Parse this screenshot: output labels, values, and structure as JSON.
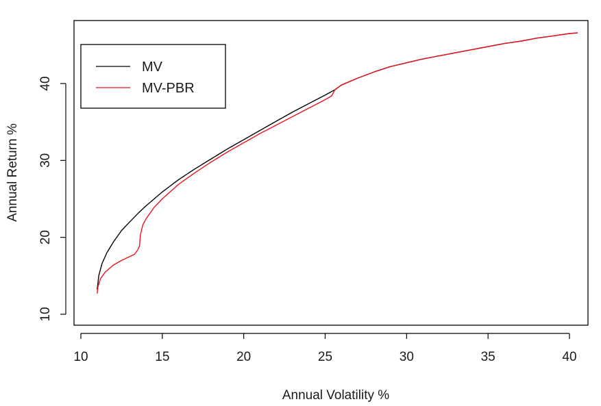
{
  "chart_data": {
    "type": "line",
    "title": "",
    "xlabel": "Annual Volatility %",
    "ylabel": "Annual Return %",
    "xlim": [
      10,
      40.5
    ],
    "ylim": [
      9,
      47
    ],
    "x_ticks": [
      10,
      15,
      20,
      25,
      30,
      35,
      40
    ],
    "y_ticks": [
      10,
      20,
      30,
      40
    ],
    "legend_position": "top-left",
    "grid": false,
    "series": [
      {
        "name": "MV",
        "color": "#000000",
        "points": [
          [
            11.0,
            13.2
          ],
          [
            11.1,
            15.0
          ],
          [
            11.3,
            16.6
          ],
          [
            11.6,
            18.0
          ],
          [
            12.0,
            19.4
          ],
          [
            12.5,
            20.9
          ],
          [
            13.0,
            22.0
          ],
          [
            13.5,
            23.1
          ],
          [
            14.0,
            24.1
          ],
          [
            15.0,
            25.9
          ],
          [
            16.0,
            27.5
          ],
          [
            17.0,
            28.9
          ],
          [
            18.0,
            30.2
          ],
          [
            19.0,
            31.5
          ],
          [
            20.0,
            32.7
          ],
          [
            21.0,
            33.9
          ],
          [
            22.0,
            35.1
          ],
          [
            23.0,
            36.3
          ],
          [
            24.0,
            37.4
          ],
          [
            25.0,
            38.5
          ],
          [
            25.6,
            39.2
          ],
          [
            26.0,
            39.8
          ],
          [
            27.0,
            40.7
          ],
          [
            28.0,
            41.5
          ],
          [
            29.0,
            42.2
          ],
          [
            30.0,
            42.7
          ],
          [
            31.0,
            43.2
          ],
          [
            32.0,
            43.6
          ],
          [
            33.0,
            44.0
          ],
          [
            34.0,
            44.4
          ],
          [
            35.0,
            44.8
          ],
          [
            36.0,
            45.2
          ],
          [
            37.0,
            45.5
          ],
          [
            38.0,
            45.9
          ],
          [
            39.0,
            46.2
          ],
          [
            40.0,
            46.5
          ],
          [
            40.5,
            46.6
          ]
        ]
      },
      {
        "name": "MV-PBR",
        "color": "#e8131e",
        "points": [
          [
            11.0,
            12.7
          ],
          [
            11.05,
            13.6
          ],
          [
            11.2,
            14.6
          ],
          [
            11.5,
            15.5
          ],
          [
            12.0,
            16.4
          ],
          [
            12.5,
            17.0
          ],
          [
            13.0,
            17.5
          ],
          [
            13.3,
            17.8
          ],
          [
            13.5,
            18.4
          ],
          [
            13.6,
            18.9
          ],
          [
            13.65,
            20.2
          ],
          [
            13.8,
            21.6
          ],
          [
            14.0,
            22.4
          ],
          [
            14.5,
            23.9
          ],
          [
            15.0,
            25.0
          ],
          [
            16.0,
            26.9
          ],
          [
            17.0,
            28.4
          ],
          [
            18.0,
            29.8
          ],
          [
            19.0,
            31.1
          ],
          [
            20.0,
            32.3
          ],
          [
            21.0,
            33.5
          ],
          [
            22.0,
            34.6
          ],
          [
            23.0,
            35.7
          ],
          [
            24.0,
            36.8
          ],
          [
            25.0,
            37.9
          ],
          [
            25.4,
            38.4
          ],
          [
            25.6,
            39.2
          ],
          [
            26.0,
            39.8
          ],
          [
            27.0,
            40.7
          ],
          [
            28.0,
            41.5
          ],
          [
            29.0,
            42.2
          ],
          [
            30.0,
            42.7
          ],
          [
            31.0,
            43.2
          ],
          [
            32.0,
            43.6
          ],
          [
            33.0,
            44.0
          ],
          [
            34.0,
            44.4
          ],
          [
            35.0,
            44.8
          ],
          [
            36.0,
            45.2
          ],
          [
            37.0,
            45.5
          ],
          [
            38.0,
            45.9
          ],
          [
            39.0,
            46.2
          ],
          [
            40.0,
            46.5
          ],
          [
            40.5,
            46.6
          ]
        ]
      }
    ]
  }
}
